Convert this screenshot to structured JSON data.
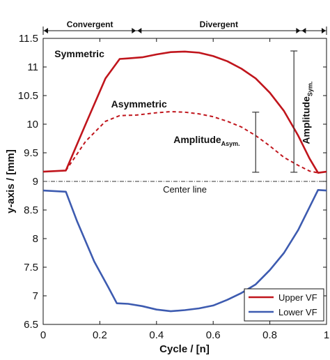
{
  "chart_data": {
    "type": "line",
    "xlabel": "Cycle / [n]",
    "ylabel": "y-axis / [mm]",
    "xlim": [
      0,
      1
    ],
    "ylim": [
      6.5,
      11.5
    ],
    "xticks": [
      0,
      0.2,
      0.4,
      0.6,
      0.8,
      1
    ],
    "xtick_labels": [
      "0",
      "0.2",
      "0.4",
      "0.6",
      "0.8",
      "1"
    ],
    "yticks": [
      6.5,
      7,
      7.5,
      8,
      8.5,
      9,
      9.5,
      10,
      10.5,
      11,
      11.5
    ],
    "ytick_labels": [
      "6.5",
      "7",
      "7.5",
      "8",
      "8.5",
      "9",
      "9.5",
      "10",
      "10.5",
      "11",
      "11.5"
    ],
    "grid": false,
    "legend_position": "bottom-right",
    "phases": [
      {
        "label": "Convergent",
        "x0": 0,
        "x1": 0.33
      },
      {
        "label": "Divergent",
        "x0": 0.33,
        "x1": 0.91
      }
    ],
    "centerline": {
      "y": 9,
      "label": "Center line"
    },
    "series": [
      {
        "name": "Upper VF",
        "color": "#c0151c",
        "style": "solid",
        "x": [
          0,
          0.08,
          0.15,
          0.22,
          0.27,
          0.3,
          0.35,
          0.4,
          0.45,
          0.5,
          0.55,
          0.6,
          0.65,
          0.7,
          0.75,
          0.8,
          0.85,
          0.9,
          0.94,
          0.97,
          1.0
        ],
        "values": [
          9.17,
          9.19,
          10.0,
          10.8,
          11.14,
          11.15,
          11.17,
          11.22,
          11.26,
          11.27,
          11.25,
          11.19,
          11.1,
          10.97,
          10.8,
          10.55,
          10.23,
          9.8,
          9.4,
          9.15,
          9.17
        ]
      },
      {
        "name": "Asymmetric",
        "color": "#c0151c",
        "style": "dashed",
        "x": [
          0.08,
          0.15,
          0.22,
          0.27,
          0.33,
          0.4,
          0.45,
          0.5,
          0.55,
          0.6,
          0.65,
          0.7,
          0.75,
          0.8,
          0.85,
          0.9,
          0.94,
          0.97
        ],
        "values": [
          9.19,
          9.7,
          10.05,
          10.15,
          10.16,
          10.2,
          10.22,
          10.21,
          10.18,
          10.13,
          10.05,
          9.95,
          9.8,
          9.62,
          9.42,
          9.28,
          9.18,
          9.15
        ]
      },
      {
        "name": "Lower VF",
        "color": "#3d5bb0",
        "style": "solid",
        "x": [
          0,
          0.08,
          0.12,
          0.18,
          0.23,
          0.26,
          0.3,
          0.35,
          0.4,
          0.45,
          0.5,
          0.55,
          0.6,
          0.65,
          0.7,
          0.75,
          0.8,
          0.85,
          0.9,
          0.94,
          0.97,
          1.0
        ],
        "values": [
          8.84,
          8.82,
          8.3,
          7.6,
          7.15,
          6.87,
          6.86,
          6.82,
          6.76,
          6.73,
          6.75,
          6.78,
          6.83,
          6.93,
          7.05,
          7.2,
          7.45,
          7.75,
          8.15,
          8.55,
          8.85,
          8.84
        ]
      }
    ],
    "annotations": [
      {
        "text": "Symmetric",
        "x": 0.04,
        "y": 11.17
      },
      {
        "text": "Asymmetric",
        "x": 0.24,
        "y": 10.29
      }
    ],
    "amplitudes": [
      {
        "label": "Amplitude",
        "sub": "Asym.",
        "x": 0.75,
        "y0": 9.16,
        "y1": 10.21
      },
      {
        "label": "Amplitude",
        "sub": "Sym.",
        "x": 0.885,
        "y0": 9.16,
        "y1": 11.28
      }
    ]
  }
}
